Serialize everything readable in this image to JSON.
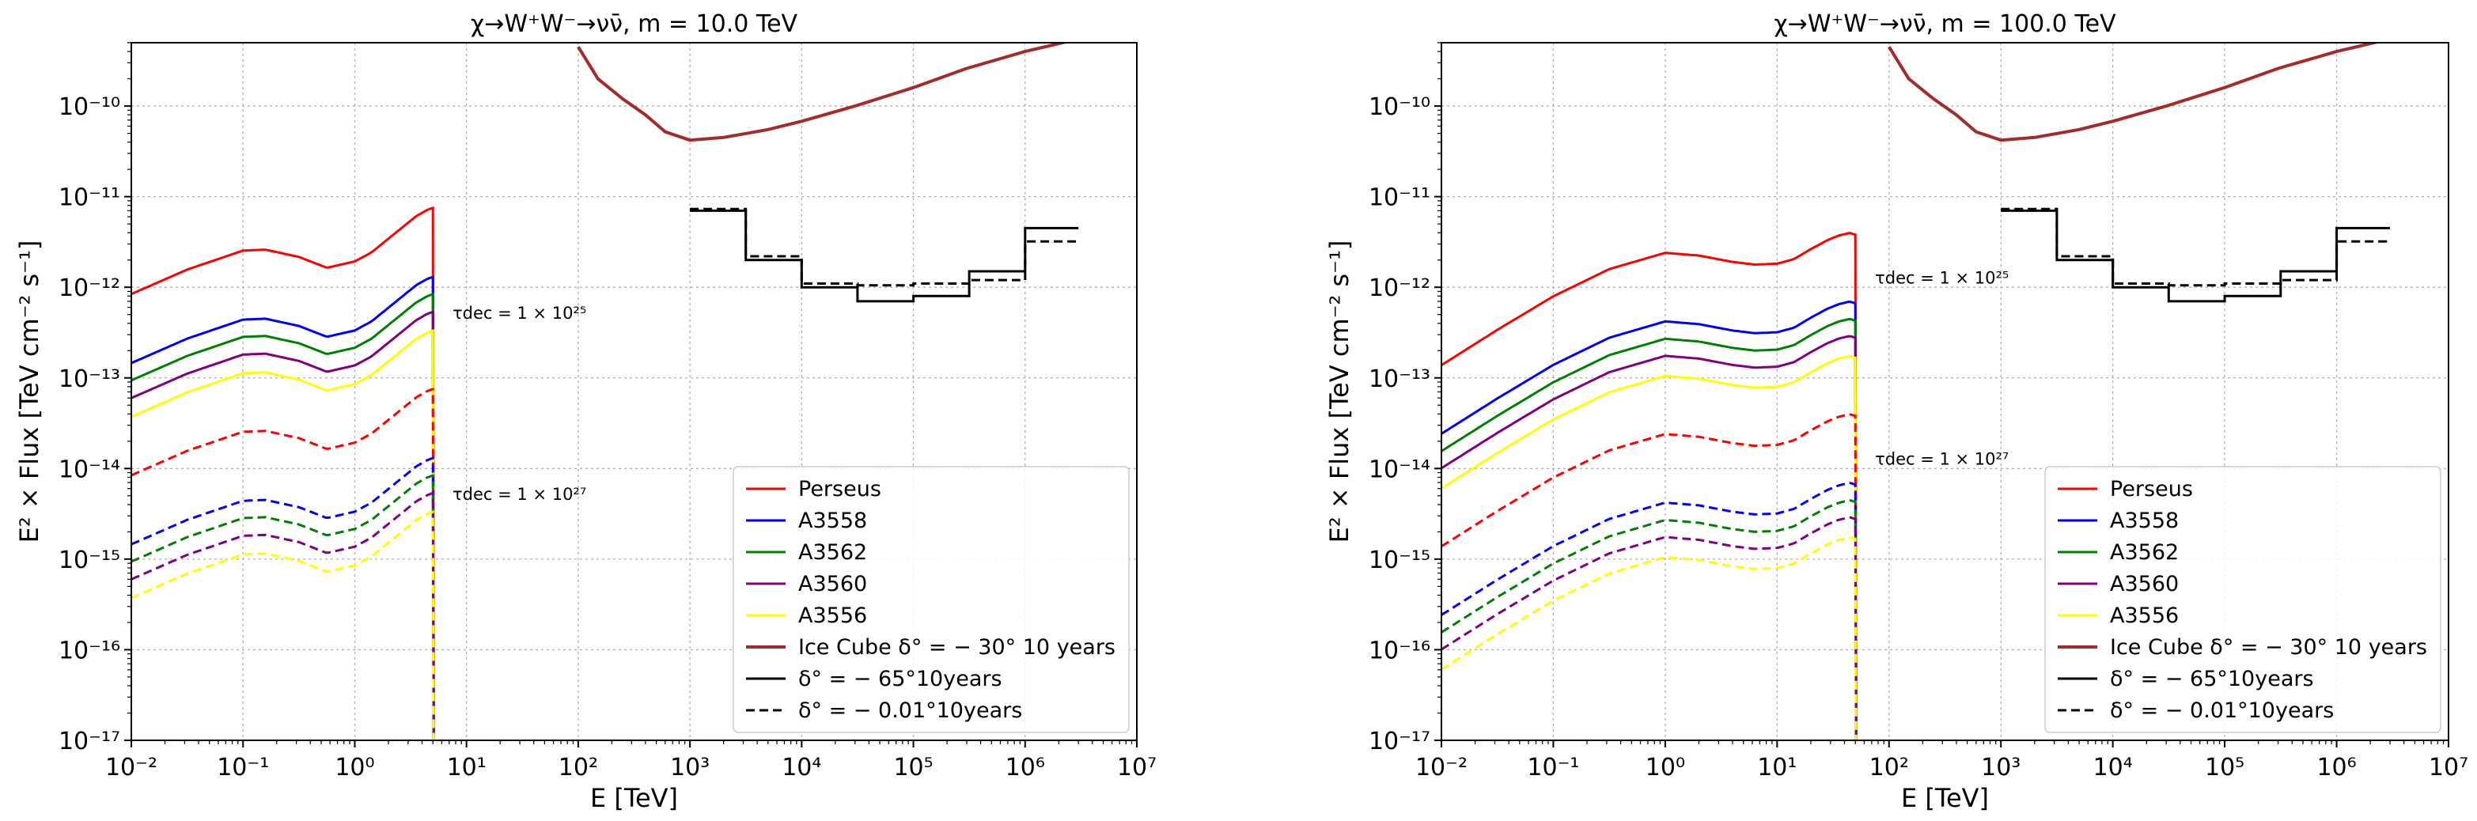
{
  "figure": {
    "panels": [
      {
        "title_prefix": "χ→W⁺W⁻→νν̄",
        "title_mass": "m = 10.0 TeV",
        "tau_labels": [
          {
            "text": "τdec = 1 × 10²⁵",
            "E": 7.5,
            "flux": 4.5e-13
          },
          {
            "text": "τdec = 1 × 10²⁷",
            "E": 7.5,
            "flux": 4.5e-15
          }
        ]
      },
      {
        "title_prefix": "χ→W⁺W⁻→νν̄",
        "title_mass": "m = 100.0 TeV",
        "tau_labels": [
          {
            "text": "τdec = 1 × 10²⁵",
            "E": 75,
            "flux": 1.1e-12
          },
          {
            "text": "τdec = 1 × 10²⁷",
            "E": 75,
            "flux": 1.1e-14
          }
        ]
      }
    ],
    "colors": {
      "Perseus": "#ff0000",
      "A3558": "#0000ff",
      "A3562": "#008000",
      "A3560": "#800080",
      "A3556": "#ffff00",
      "IceCube": "#a52a2a",
      "IceCube_steps": "#000000"
    },
    "legend": [
      "Perseus",
      "A3558",
      "A3562",
      "A3560",
      "A3556",
      "Ice Cube δ° = − 30° 10 years",
      "δ° = − 65°10years",
      "δ° = − 0.01°10years"
    ]
  },
  "chart_data": [
    {
      "type": "line",
      "title": "χ→W⁺W⁻→νν̄, m = 10.0 TeV",
      "xlabel": "E [TeV]",
      "ylabel": "E² × Flux [TeV cm⁻² s⁻¹]",
      "xscale": "log",
      "yscale": "log",
      "xlim": [
        0.01,
        10000000
      ],
      "ylim": [
        1e-17,
        5e-10
      ],
      "xticks": [
        "10⁻²",
        "10⁻¹",
        "10⁰",
        "10¹",
        "10²",
        "10³",
        "10⁴",
        "10⁵",
        "10⁶",
        "10⁷"
      ],
      "yticks": [
        "10⁻¹⁷",
        "10⁻¹⁶",
        "10⁻¹⁵",
        "10⁻¹⁴",
        "10⁻¹³",
        "10⁻¹²",
        "10⁻¹¹",
        "10⁻¹⁰"
      ],
      "grid": true,
      "legend_position": "lower-right",
      "cutoff_E": 5.0,
      "curve_shape": {
        "logE": [
          -2,
          -1.5,
          -1,
          -0.8,
          -0.5,
          -0.25,
          0,
          0.15,
          0.3,
          0.45,
          0.55,
          0.65,
          0.695
        ],
        "dlog": [
          -0.49,
          -0.22,
          -0.01,
          0,
          -0.08,
          -0.2,
          -0.13,
          -0.03,
          0.12,
          0.27,
          0.37,
          0.44,
          0.46
        ]
      },
      "series": [
        {
          "name": "Perseus",
          "tau": 1e+25,
          "style": "solid",
          "peak": 2.6e-12
        },
        {
          "name": "A3558",
          "tau": 1e+25,
          "style": "solid",
          "peak": 4.5e-13
        },
        {
          "name": "A3562",
          "tau": 1e+25,
          "style": "solid",
          "peak": 2.9e-13
        },
        {
          "name": "A3560",
          "tau": 1e+25,
          "style": "solid",
          "peak": 1.85e-13
        },
        {
          "name": "A3556",
          "tau": 1e+25,
          "style": "solid",
          "peak": 1.15e-13
        },
        {
          "name": "Perseus",
          "tau": 1e+27,
          "style": "dashed",
          "peak": 2.6e-14
        },
        {
          "name": "A3558",
          "tau": 1e+27,
          "style": "dashed",
          "peak": 4.5e-15
        },
        {
          "name": "A3562",
          "tau": 1e+27,
          "style": "dashed",
          "peak": 2.9e-15
        },
        {
          "name": "A3560",
          "tau": 1e+27,
          "style": "dashed",
          "peak": 1.85e-15
        },
        {
          "name": "A3556",
          "tau": 1e+27,
          "style": "dashed",
          "peak": 1.15e-15
        }
      ],
      "icecube_sensitivity": {
        "E": [
          100,
          150,
          250,
          400,
          600,
          1000,
          2000,
          5000,
          10000,
          30000,
          100000,
          300000,
          1000000,
          3000000
        ],
        "flux": [
          4.5e-10,
          2e-10,
          1.2e-10,
          8e-11,
          5.2e-11,
          4.2e-11,
          4.5e-11,
          5.5e-11,
          6.8e-11,
          1e-10,
          1.6e-10,
          2.6e-10,
          4e-10,
          5.5e-10
        ]
      },
      "icecube_steps_dec_minus65": {
        "E": [
          1000,
          3160,
          10000,
          31600,
          100000,
          316000,
          1000000,
          3000000
        ],
        "flux": [
          7e-12,
          2e-12,
          1e-12,
          7e-13,
          8e-13,
          1.5e-12,
          4.5e-12
        ]
      },
      "icecube_steps_dec_minus001": {
        "E": [
          1000,
          3160,
          10000,
          31600,
          100000,
          316000,
          1000000,
          3000000
        ],
        "flux": [
          7.3e-12,
          2.2e-12,
          1.1e-12,
          1.05e-12,
          1.1e-12,
          1.2e-12,
          3.2e-12
        ]
      }
    },
    {
      "type": "line",
      "title": "χ→W⁺W⁻→νν̄, m = 100.0 TeV",
      "xlabel": "E [TeV]",
      "ylabel": "E² × Flux [TeV cm⁻² s⁻¹]",
      "xscale": "log",
      "yscale": "log",
      "xlim": [
        0.01,
        10000000
      ],
      "ylim": [
        1e-17,
        5e-10
      ],
      "xticks": [
        "10⁻²",
        "10⁻¹",
        "10⁰",
        "10¹",
        "10²",
        "10³",
        "10⁴",
        "10⁵",
        "10⁶",
        "10⁷"
      ],
      "yticks": [
        "10⁻¹⁷",
        "10⁻¹⁶",
        "10⁻¹⁵",
        "10⁻¹⁴",
        "10⁻¹³",
        "10⁻¹²",
        "10⁻¹¹",
        "10⁻¹⁰"
      ],
      "grid": true,
      "legend_position": "lower-right",
      "cutoff_E": 50.0,
      "curve_shape": {
        "logE": [
          -2,
          -1.5,
          -1,
          -0.5,
          0,
          0.3,
          0.6,
          0.8,
          1,
          1.15,
          1.3,
          1.45,
          1.55,
          1.65,
          1.695
        ],
        "dlog": [
          -1.24,
          -0.85,
          -0.48,
          -0.18,
          0,
          -0.03,
          -0.1,
          -0.13,
          -0.12,
          -0.07,
          0.04,
          0.14,
          0.19,
          0.22,
          0.2
        ]
      },
      "series": [
        {
          "name": "Perseus",
          "tau": 1e+25,
          "style": "solid",
          "peak": 2.4e-12
        },
        {
          "name": "A3558",
          "tau": 1e+25,
          "style": "solid",
          "peak": 4.2e-13
        },
        {
          "name": "A3562",
          "tau": 1e+25,
          "style": "solid",
          "peak": 2.7e-13
        },
        {
          "name": "A3560",
          "tau": 1e+25,
          "style": "solid",
          "peak": 1.75e-13
        },
        {
          "name": "A3556",
          "tau": 1e+25,
          "style": "solid",
          "peak": 1.05e-13
        },
        {
          "name": "Perseus",
          "tau": 1e+27,
          "style": "dashed",
          "peak": 2.4e-14
        },
        {
          "name": "A3558",
          "tau": 1e+27,
          "style": "dashed",
          "peak": 4.2e-15
        },
        {
          "name": "A3562",
          "tau": 1e+27,
          "style": "dashed",
          "peak": 2.7e-15
        },
        {
          "name": "A3560",
          "tau": 1e+27,
          "style": "dashed",
          "peak": 1.75e-15
        },
        {
          "name": "A3556",
          "tau": 1e+27,
          "style": "dashed",
          "peak": 1.05e-15
        }
      ],
      "icecube_sensitivity": {
        "E": [
          100,
          150,
          250,
          400,
          600,
          1000,
          2000,
          5000,
          10000,
          30000,
          100000,
          300000,
          1000000,
          3000000
        ],
        "flux": [
          4.5e-10,
          2e-10,
          1.2e-10,
          8e-11,
          5.2e-11,
          4.2e-11,
          4.5e-11,
          5.5e-11,
          6.8e-11,
          1e-10,
          1.6e-10,
          2.6e-10,
          4e-10,
          5.5e-10
        ]
      },
      "icecube_steps_dec_minus65": {
        "E": [
          1000,
          3160,
          10000,
          31600,
          100000,
          316000,
          1000000,
          3000000
        ],
        "flux": [
          7e-12,
          2e-12,
          1e-12,
          7e-13,
          8e-13,
          1.5e-12,
          4.5e-12
        ]
      },
      "icecube_steps_dec_minus001": {
        "E": [
          1000,
          3160,
          10000,
          31600,
          100000,
          316000,
          1000000,
          3000000
        ],
        "flux": [
          7.3e-12,
          2.2e-12,
          1.1e-12,
          1.05e-12,
          1.1e-12,
          1.2e-12,
          3.2e-12
        ]
      }
    }
  ]
}
